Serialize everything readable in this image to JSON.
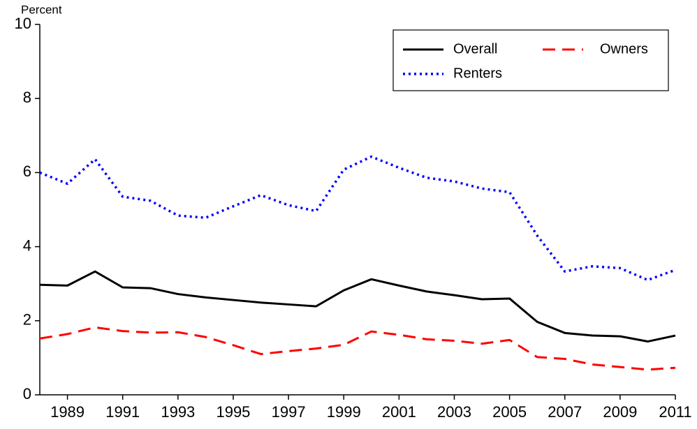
{
  "chart_data": {
    "type": "line",
    "y_label": "Percent",
    "x": [
      1988,
      1989,
      1990,
      1991,
      1992,
      1993,
      1994,
      1995,
      1996,
      1997,
      1998,
      1999,
      2000,
      2001,
      2002,
      2003,
      2004,
      2005,
      2006,
      2007,
      2008,
      2009,
      2010,
      2011
    ],
    "series": [
      {
        "name": "Overall",
        "color": "#000000",
        "style": "solid",
        "values": [
          2.97,
          2.95,
          3.33,
          2.9,
          2.88,
          2.72,
          2.63,
          2.56,
          2.49,
          2.44,
          2.39,
          2.82,
          3.12,
          2.95,
          2.79,
          2.69,
          2.58,
          2.6,
          1.97,
          1.67,
          1.6,
          1.58,
          1.44,
          1.6
        ]
      },
      {
        "name": "Owners",
        "color": "#ff0000",
        "style": "dashed",
        "values": [
          1.52,
          1.64,
          1.82,
          1.72,
          1.68,
          1.69,
          1.56,
          1.34,
          1.1,
          1.18,
          1.25,
          1.35,
          1.71,
          1.62,
          1.5,
          1.46,
          1.38,
          1.48,
          1.02,
          0.97,
          0.82,
          0.75,
          0.68,
          0.73
        ]
      },
      {
        "name": "Renters",
        "color": "#0000ff",
        "style": "dotted",
        "values": [
          6.0,
          5.7,
          6.36,
          5.35,
          5.24,
          4.84,
          4.78,
          5.09,
          5.39,
          5.12,
          4.96,
          6.08,
          6.43,
          6.13,
          5.86,
          5.76,
          5.57,
          5.47,
          4.3,
          3.33,
          3.47,
          3.42,
          3.1,
          3.37
        ]
      }
    ],
    "xlim": [
      1988,
      2011
    ],
    "xticks": [
      1989,
      1991,
      1993,
      1995,
      1997,
      1999,
      2001,
      2003,
      2005,
      2007,
      2009,
      2011
    ],
    "ylim": [
      0,
      10
    ],
    "yticks": [
      0,
      2,
      4,
      6,
      8,
      10
    ],
    "grid": false,
    "legend": "upper right"
  }
}
